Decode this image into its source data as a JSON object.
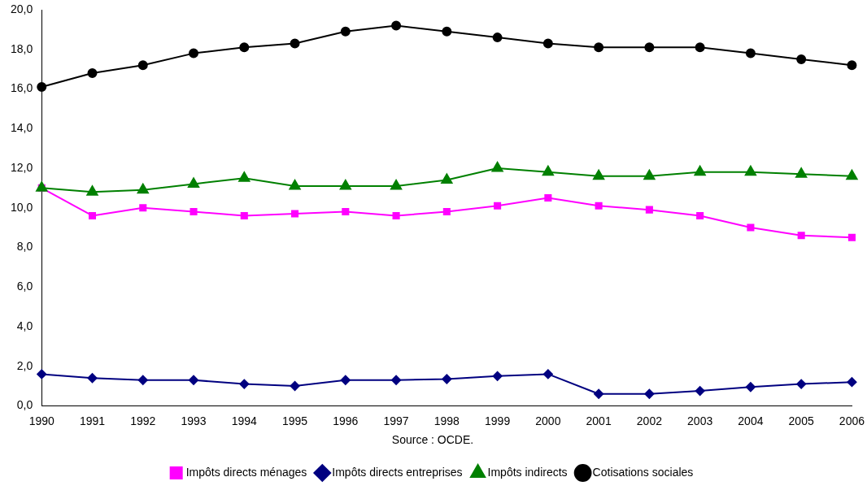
{
  "chart_data": {
    "type": "line",
    "categories": [
      "1990",
      "1991",
      "1992",
      "1993",
      "1994",
      "1995",
      "1996",
      "1997",
      "1998",
      "1999",
      "2000",
      "2001",
      "2002",
      "2003",
      "2004",
      "2005",
      "2006"
    ],
    "series": [
      {
        "name": "Impôts directs ménages",
        "color": "#ff00ff",
        "marker": "square",
        "values": [
          11.0,
          9.6,
          10.0,
          9.8,
          9.6,
          9.7,
          9.8,
          9.6,
          9.8,
          10.1,
          10.5,
          10.1,
          9.9,
          9.6,
          9.0,
          8.6,
          8.5
        ]
      },
      {
        "name": "Impôts directs entreprises",
        "color": "#000080",
        "marker": "diamond",
        "values": [
          1.6,
          1.4,
          1.3,
          1.3,
          1.1,
          1.0,
          1.3,
          1.3,
          1.35,
          1.5,
          1.6,
          0.6,
          0.6,
          0.75,
          0.95,
          1.1,
          1.2
        ]
      },
      {
        "name": "Impôts indirects",
        "color": "#008000",
        "marker": "triangle",
        "values": [
          11.0,
          10.8,
          10.9,
          11.2,
          11.5,
          11.1,
          11.1,
          11.1,
          11.4,
          12.0,
          11.8,
          11.6,
          11.6,
          11.8,
          11.8,
          11.7,
          11.6
        ]
      },
      {
        "name": "Cotisations sociales",
        "color": "#000000",
        "marker": "circle",
        "values": [
          16.1,
          16.8,
          17.2,
          17.8,
          18.1,
          18.3,
          18.9,
          19.2,
          18.9,
          18.6,
          18.3,
          18.1,
          18.1,
          18.1,
          17.8,
          17.5,
          17.2
        ]
      }
    ],
    "ylim": [
      0,
      20
    ],
    "yticks": [
      {
        "value": 0,
        "label": "0,0"
      },
      {
        "value": 2,
        "label": "2,0"
      },
      {
        "value": 4,
        "label": "4,0"
      },
      {
        "value": 6,
        "label": "6,0"
      },
      {
        "value": 8,
        "label": "8,0"
      },
      {
        "value": 10,
        "label": "10,0"
      },
      {
        "value": 12,
        "label": "12,0"
      },
      {
        "value": 14,
        "label": "14,0"
      },
      {
        "value": 16,
        "label": "16,0"
      },
      {
        "value": 18,
        "label": "18,0"
      },
      {
        "value": 20,
        "label": "20,0"
      }
    ],
    "annotations": [
      "Source : OCDE."
    ],
    "legend": "bottom",
    "grid": false,
    "line_style": "solid"
  }
}
